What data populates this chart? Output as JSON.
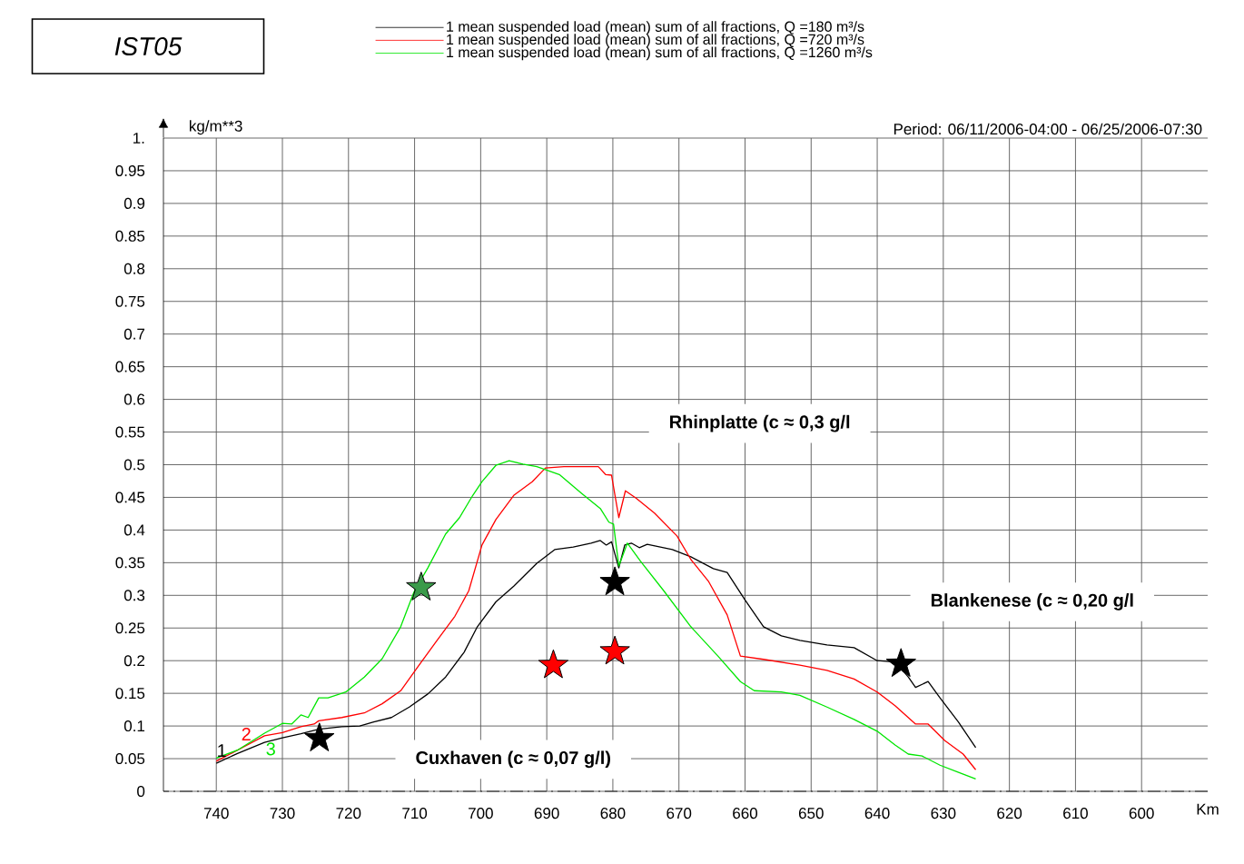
{
  "chart_data": {
    "type": "line",
    "title": "IST05",
    "subtitle": "Period: 06/11/2006-04:00 - 06/25/2006-07:30",
    "xlabel": "Km",
    "ylabel": "kg/m**3",
    "xlim": [
      748,
      590
    ],
    "xticks": [
      740,
      730,
      720,
      710,
      700,
      690,
      680,
      670,
      660,
      650,
      640,
      630,
      620,
      610,
      600
    ],
    "ylim": [
      0,
      1
    ],
    "yticks": [
      0,
      0.05,
      0.1,
      0.15,
      0.2,
      0.25,
      0.3,
      0.35,
      0.4,
      0.45,
      0.5,
      0.55,
      0.6,
      0.65,
      0.7,
      0.75,
      0.8,
      0.85,
      0.9,
      0.95,
      {
        "value": 1,
        "label": "1."
      }
    ],
    "grid": true,
    "legend": "top",
    "series": [
      {
        "name": "1 mean suspended load (mean) sum of all fractions,  Q =180 m³/s",
        "color": "#000000",
        "x": [
          740,
          736.8,
          732.7,
          730,
          727.2,
          724.5,
          721,
          718.3,
          716.3,
          713.5,
          710.8,
          708,
          705.3,
          702.5,
          700.5,
          697.7,
          695,
          691.5,
          688.8,
          686,
          683.3,
          681.9,
          681,
          680.2,
          679.1,
          678.2,
          677.2,
          676,
          674.8,
          671,
          668.2,
          664.8,
          662.7,
          660,
          657.2,
          654.5,
          651.7,
          647.6,
          643.5,
          640,
          637.3,
          635.3,
          634.2,
          632.3,
          630.5,
          627.7,
          625.1
        ],
        "values": [
          0.043,
          0.058,
          0.075,
          0.082,
          0.088,
          0.095,
          0.099,
          0.1,
          0.106,
          0.113,
          0.129,
          0.149,
          0.175,
          0.213,
          0.252,
          0.29,
          0.314,
          0.349,
          0.37,
          0.374,
          0.38,
          0.384,
          0.377,
          0.382,
          0.342,
          0.377,
          0.38,
          0.373,
          0.378,
          0.37,
          0.359,
          0.341,
          0.335,
          0.293,
          0.252,
          0.238,
          0.231,
          0.224,
          0.22,
          0.2,
          0.198,
          0.175,
          0.159,
          0.168,
          0.143,
          0.106,
          0.067
        ]
      },
      {
        "name": "1 mean suspended load (mean) sum of all fractions,  Q =720 m³/s",
        "color": "#ff0000",
        "x": [
          740,
          736.8,
          732.7,
          730,
          727.2,
          725.2,
          724.5,
          721,
          717.6,
          714.9,
          712.1,
          709.4,
          706.6,
          703.9,
          701.8,
          699.8,
          697.7,
          695,
          692.2,
          690.2,
          687.4,
          684.7,
          682.2,
          681.1,
          680.2,
          679.1,
          678.1,
          676.5,
          673.7,
          670.3,
          668.2,
          665.5,
          662.7,
          660.7,
          657.2,
          651.7,
          647.6,
          643.5,
          640,
          637.3,
          634.2,
          632.3,
          629.8,
          627,
          625.1
        ],
        "values": [
          0.046,
          0.063,
          0.085,
          0.09,
          0.099,
          0.103,
          0.108,
          0.113,
          0.12,
          0.134,
          0.154,
          0.192,
          0.231,
          0.268,
          0.307,
          0.377,
          0.416,
          0.453,
          0.474,
          0.495,
          0.497,
          0.497,
          0.497,
          0.485,
          0.484,
          0.419,
          0.46,
          0.449,
          0.426,
          0.391,
          0.355,
          0.321,
          0.27,
          0.207,
          0.202,
          0.193,
          0.185,
          0.172,
          0.152,
          0.131,
          0.103,
          0.103,
          0.078,
          0.057,
          0.033
        ]
      },
      {
        "name": "1 mean suspended load (mean) sum of all fractions,  Q =1260 m³/s",
        "color": "#00e600",
        "x": [
          740,
          736.8,
          732.7,
          730,
          728.6,
          727.2,
          726.1,
          724.5,
          723.1,
          720.4,
          717.6,
          714.9,
          712.1,
          710.1,
          708,
          705.3,
          703.2,
          701.2,
          699.8,
          697.7,
          695.7,
          693.6,
          691.5,
          688.1,
          684.7,
          681.9,
          680.6,
          679.9,
          679.1,
          677.8,
          675.8,
          672.3,
          668.2,
          664.1,
          660.7,
          658.6,
          654.5,
          651.7,
          647.6,
          643.5,
          640,
          637.3,
          635.3,
          633.2,
          630.5,
          627.7,
          625.1
        ],
        "values": [
          0.051,
          0.063,
          0.089,
          0.104,
          0.103,
          0.117,
          0.113,
          0.143,
          0.143,
          0.152,
          0.175,
          0.203,
          0.252,
          0.305,
          0.342,
          0.394,
          0.419,
          0.453,
          0.474,
          0.499,
          0.506,
          0.501,
          0.497,
          0.485,
          0.456,
          0.433,
          0.412,
          0.409,
          0.345,
          0.38,
          0.352,
          0.307,
          0.252,
          0.207,
          0.168,
          0.154,
          0.152,
          0.147,
          0.129,
          0.11,
          0.092,
          0.071,
          0.057,
          0.054,
          0.04,
          0.029,
          0.019
        ]
      },
      {
        "type": "scatter",
        "marker": "star",
        "color": "#000000",
        "x": [
          724.4,
          679.7,
          636.4
        ],
        "values": [
          0.081,
          0.32,
          0.195
        ]
      },
      {
        "type": "scatter",
        "marker": "star",
        "color": "#ff0000",
        "x": [
          689,
          679.7
        ],
        "values": [
          0.193,
          0.214
        ]
      },
      {
        "type": "scatter",
        "marker": "star",
        "color": "#3a9a4a",
        "x": [
          709
        ],
        "values": [
          0.312
        ]
      }
    ],
    "annotations": [
      "Rhinplatte (c ≈ 0,3 g/l",
      "Blankenese (c ≈ 0,20 g/l",
      "Cuxhaven (c ≈ 0,07 g/l)",
      "1",
      "2",
      "3"
    ]
  }
}
